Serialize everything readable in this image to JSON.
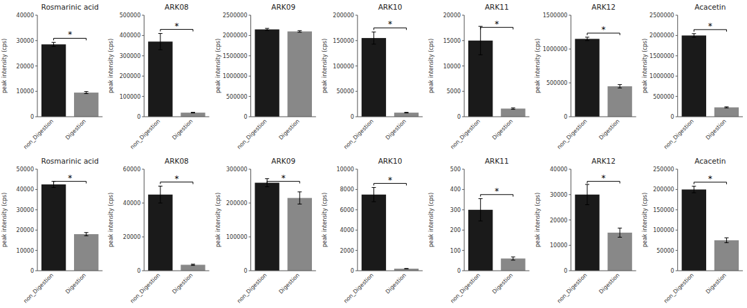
{
  "chart_data": [
    {
      "type": "bar",
      "title": "Rosmarinic acid",
      "ylabel": "peak intensity (cps)",
      "categories": [
        "non_Digestion",
        "Digestion"
      ],
      "values": [
        28500,
        9500
      ],
      "errors": [
        800,
        400
      ],
      "colors": [
        "#1a1a1a",
        "#888888"
      ],
      "ylim": [
        0,
        40000
      ],
      "yticks": [
        0,
        10000,
        20000,
        30000,
        40000
      ],
      "grid": false,
      "annotation": "*"
    },
    {
      "type": "bar",
      "title": "ARK08",
      "ylabel": "peak intensity (cps)",
      "categories": [
        "non_Digestion",
        "Digestion"
      ],
      "values": [
        370000,
        20000
      ],
      "errors": [
        40000,
        1500
      ],
      "colors": [
        "#1a1a1a",
        "#888888"
      ],
      "ylim": [
        0,
        500000
      ],
      "yticks": [
        0,
        100000,
        200000,
        300000,
        400000,
        500000
      ],
      "grid": false,
      "annotation": "*"
    },
    {
      "type": "bar",
      "title": "ARK09",
      "ylabel": "peak intensity (cps)",
      "categories": [
        "non_Digestion",
        "Digestion"
      ],
      "values": [
        2150000,
        2100000
      ],
      "errors": [
        25000,
        20000
      ],
      "colors": [
        "#1a1a1a",
        "#888888"
      ],
      "ylim": [
        0,
        2500000
      ],
      "yticks": [
        0,
        500000,
        1000000,
        1500000,
        2000000,
        2500000
      ],
      "grid": false
    },
    {
      "type": "bar",
      "title": "ARK10",
      "ylabel": "peak intensity (cps)",
      "categories": [
        "non_Digestion",
        "Digestion"
      ],
      "values": [
        155000,
        8000
      ],
      "errors": [
        12000,
        600
      ],
      "colors": [
        "#1a1a1a",
        "#888888"
      ],
      "ylim": [
        0,
        200000
      ],
      "yticks": [
        0,
        50000,
        100000,
        150000,
        200000
      ],
      "grid": false,
      "annotation": "*"
    },
    {
      "type": "bar",
      "title": "ARK11",
      "ylabel": "peak intensity (cps)",
      "categories": [
        "non_Digestion",
        "Digestion"
      ],
      "values": [
        15000,
        1600
      ],
      "errors": [
        2800,
        150
      ],
      "colors": [
        "#1a1a1a",
        "#888888"
      ],
      "ylim": [
        0,
        20000
      ],
      "yticks": [
        0,
        5000,
        10000,
        15000,
        20000
      ],
      "grid": false,
      "annotation": "*"
    },
    {
      "type": "bar",
      "title": "ARK12",
      "ylabel": "peak intensity (cps)",
      "categories": [
        "non_Digestion",
        "Digestion"
      ],
      "values": [
        1150000,
        450000
      ],
      "errors": [
        25000,
        25000
      ],
      "colors": [
        "#1a1a1a",
        "#888888"
      ],
      "ylim": [
        0,
        1500000
      ],
      "yticks": [
        0,
        500000,
        1000000,
        1500000
      ],
      "grid": false,
      "annotation": "*"
    },
    {
      "type": "bar",
      "title": "Acacetin",
      "ylabel": "peak intensity (cps)",
      "categories": [
        "non_Digestion",
        "Digestion"
      ],
      "values": [
        2000000,
        230000
      ],
      "errors": [
        45000,
        12000
      ],
      "colors": [
        "#1a1a1a",
        "#888888"
      ],
      "ylim": [
        0,
        2500000
      ],
      "yticks": [
        0,
        500000,
        1000000,
        1500000,
        2000000,
        2500000
      ],
      "grid": false,
      "annotation": "*"
    },
    {
      "type": "bar",
      "title": "Rosmarinic acid",
      "ylabel": "peak intensity (cps)",
      "categories": [
        "non_Digestion",
        "Digestion"
      ],
      "values": [
        42500,
        18000
      ],
      "errors": [
        1500,
        800
      ],
      "colors": [
        "#1a1a1a",
        "#888888"
      ],
      "ylim": [
        0,
        50000
      ],
      "yticks": [
        0,
        10000,
        20000,
        30000,
        40000,
        50000
      ],
      "grid": false,
      "annotation": "*"
    },
    {
      "type": "bar",
      "title": "ARK08",
      "ylabel": "peak intensity (cps)",
      "categories": [
        "non_Digestion",
        "Digestion"
      ],
      "values": [
        45000,
        3500
      ],
      "errors": [
        5000,
        400
      ],
      "colors": [
        "#1a1a1a",
        "#888888"
      ],
      "ylim": [
        0,
        60000
      ],
      "yticks": [
        0,
        20000,
        40000,
        60000
      ],
      "grid": false,
      "annotation": "*"
    },
    {
      "type": "bar",
      "title": "ARK09",
      "ylabel": "peak intensity (cps)",
      "categories": [
        "non_Digestion",
        "Digestion"
      ],
      "values": [
        260000,
        215000
      ],
      "errors": [
        12000,
        18000
      ],
      "colors": [
        "#1a1a1a",
        "#888888"
      ],
      "ylim": [
        0,
        300000
      ],
      "yticks": [
        0,
        100000,
        200000,
        300000
      ],
      "grid": false,
      "annotation": "*"
    },
    {
      "type": "bar",
      "title": "ARK10",
      "ylabel": "peak intensity (cps)",
      "categories": [
        "non_Digestion",
        "Digestion"
      ],
      "values": [
        7500,
        200
      ],
      "errors": [
        700,
        15
      ],
      "colors": [
        "#1a1a1a",
        "#888888"
      ],
      "ylim": [
        0,
        10000
      ],
      "yticks": [
        0,
        2000,
        4000,
        6000,
        8000,
        10000
      ],
      "grid": false,
      "annotation": "*"
    },
    {
      "type": "bar",
      "title": "ARK11",
      "ylabel": "peak intensity (cps)",
      "categories": [
        "non_Digestion",
        "Digestion"
      ],
      "values": [
        300,
        60
      ],
      "errors": [
        55,
        8
      ],
      "colors": [
        "#1a1a1a",
        "#888888"
      ],
      "ylim": [
        0,
        500
      ],
      "yticks": [
        0,
        100,
        200,
        300,
        400,
        500
      ],
      "grid": false,
      "annotation": "*"
    },
    {
      "type": "bar",
      "title": "ARK12",
      "ylabel": "peak intensity (cps)",
      "categories": [
        "non_Digestion",
        "Digestion"
      ],
      "values": [
        30000,
        15000
      ],
      "errors": [
        4000,
        1800
      ],
      "colors": [
        "#1a1a1a",
        "#888888"
      ],
      "ylim": [
        0,
        40000
      ],
      "yticks": [
        0,
        10000,
        20000,
        30000,
        40000
      ],
      "grid": false,
      "annotation": "*"
    },
    {
      "type": "bar",
      "title": "Acacetin",
      "ylabel": "peak intensity (cps)",
      "categories": [
        "non_Digestion",
        "Digestion"
      ],
      "values": [
        200000,
        75000
      ],
      "errors": [
        8000,
        6000
      ],
      "colors": [
        "#1a1a1a",
        "#888888"
      ],
      "ylim": [
        0,
        250000
      ],
      "yticks": [
        0,
        50000,
        100000,
        150000,
        200000,
        250000
      ],
      "grid": false,
      "annotation": "*"
    }
  ]
}
